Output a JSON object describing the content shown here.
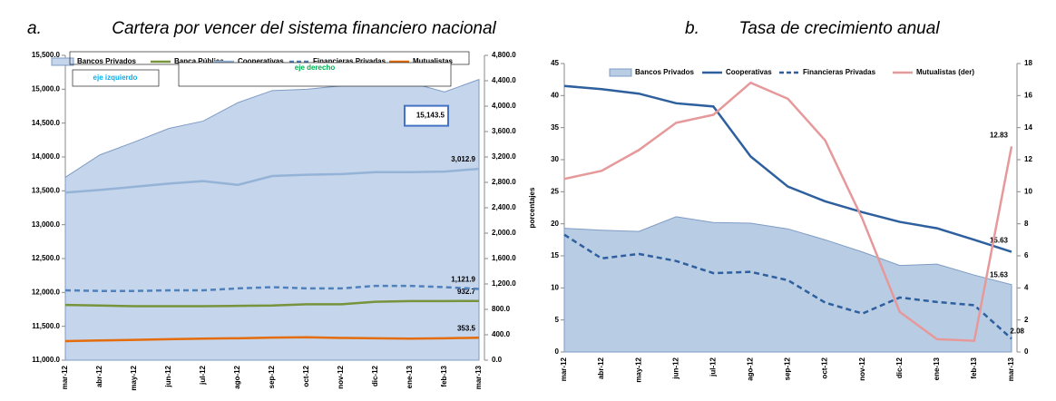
{
  "chart_data": [
    {
      "type": "line",
      "label": "a.",
      "title": "Cartera por vencer del sistema financiero nacional",
      "categories": [
        "mar-12",
        "abr-12",
        "may-12",
        "jun-12",
        "jul-12",
        "ago-12",
        "sep-12",
        "oct-12",
        "nov-12",
        "dic-12",
        "ene-13",
        "feb-13",
        "mar-13"
      ],
      "series": [
        {
          "name": "Bancos Privados",
          "color": "#c5d5ec",
          "style": "area",
          "values": [
            13700,
            14030,
            14220,
            14420,
            14530,
            14800,
            14980,
            15000,
            15050,
            15080,
            15100,
            14960,
            15143.5
          ],
          "value_labels": [
            null,
            null,
            null,
            null,
            null,
            null,
            null,
            null,
            null,
            null,
            null,
            null,
            "15,143.5"
          ]
        },
        {
          "name": "Banca Pública",
          "color": "#77933c",
          "axis": "y2",
          "values": [
            870,
            860,
            850,
            850,
            850,
            855,
            860,
            880,
            880,
            920,
            930,
            930,
            932.7
          ],
          "value_labels": [
            null,
            null,
            null,
            null,
            null,
            null,
            null,
            null,
            null,
            null,
            null,
            null,
            "932.7"
          ]
        },
        {
          "name": "Cooperativas",
          "color": "#95b3d7",
          "axis": "y2",
          "values": [
            2640,
            2680,
            2730,
            2780,
            2820,
            2760,
            2900,
            2920,
            2930,
            2960,
            2960,
            2970,
            3012.9
          ],
          "value_labels": [
            null,
            null,
            null,
            null,
            null,
            null,
            null,
            null,
            null,
            null,
            null,
            null,
            "3,012.9"
          ]
        },
        {
          "name": "Financieras Privadas",
          "color": "#4f81bd",
          "axis": "y2",
          "dash": true,
          "values": [
            1100,
            1090,
            1090,
            1100,
            1100,
            1130,
            1150,
            1130,
            1130,
            1170,
            1170,
            1150,
            1121.9
          ],
          "value_labels": [
            null,
            null,
            null,
            null,
            null,
            null,
            null,
            null,
            null,
            null,
            null,
            null,
            "1,121.9"
          ]
        },
        {
          "name": "Mutualistas",
          "color": "#e46c0a",
          "axis": "y2",
          "values": [
            300,
            310,
            320,
            330,
            340,
            345,
            355,
            360,
            350,
            345,
            340,
            345,
            353.5
          ],
          "value_labels": [
            null,
            null,
            null,
            null,
            null,
            null,
            null,
            null,
            null,
            null,
            null,
            null,
            "353.5"
          ]
        }
      ],
      "ylim": [
        11000,
        15500
      ],
      "yticks": [
        {
          "value": 11000,
          "label": "11,000.0"
        },
        {
          "value": 11500,
          "label": "11,500.0"
        },
        {
          "value": 12000,
          "label": "12,000.0"
        },
        {
          "value": 12500,
          "label": "12,500.0"
        },
        {
          "value": 13000,
          "label": "13,000.0"
        },
        {
          "value": 13500,
          "label": "13,500.0"
        },
        {
          "value": 14000,
          "label": "14,000.0"
        },
        {
          "value": 14500,
          "label": "14,500.0"
        },
        {
          "value": 15000,
          "label": "15,000.0"
        },
        {
          "value": 15500,
          "label": "15,500.0"
        }
      ],
      "y2lim": [
        0,
        4800
      ],
      "y2ticks": [
        {
          "value": 0,
          "label": "0.0"
        },
        {
          "value": 400,
          "label": "400.0"
        },
        {
          "value": 800,
          "label": "800.0"
        },
        {
          "value": 1200,
          "label": "1,200.0"
        },
        {
          "value": 1600,
          "label": "1,600.0"
        },
        {
          "value": 2000,
          "label": "2,000.0"
        },
        {
          "value": 2400,
          "label": "2,400.0"
        },
        {
          "value": 2800,
          "label": "2,800.0"
        },
        {
          "value": 3200,
          "label": "3,200.0"
        },
        {
          "value": 3600,
          "label": "3,600.0"
        },
        {
          "value": 4000,
          "label": "4,000.0"
        },
        {
          "value": 4400,
          "label": "4,400.0"
        },
        {
          "value": 4800,
          "label": "4,800.0"
        }
      ],
      "annotations": [
        "eje izquierdo",
        "eje derecho"
      ]
    },
    {
      "type": "line",
      "label": "b.",
      "title": "Tasa de crecimiento anual",
      "ylabel": "porcentajes",
      "categories": [
        "mar-12",
        "abr-12",
        "may-12",
        "jun-12",
        "jul-12",
        "ago-12",
        "sep-12",
        "oct-12",
        "nov-12",
        "dic-12",
        "ene-13",
        "feb-13",
        "mar-13"
      ],
      "series": [
        {
          "name": "Bancos Privados",
          "color": "#b8cce4",
          "style": "area",
          "values": [
            19.3,
            19.0,
            18.8,
            21.1,
            20.2,
            20.1,
            19.2,
            17.5,
            15.6,
            13.5,
            13.7,
            12.0,
            10.5
          ]
        },
        {
          "name": "Cooperativas",
          "color": "#2e5f9e",
          "values": [
            41.5,
            41.0,
            40.3,
            38.8,
            38.3,
            30.5,
            25.8,
            23.5,
            21.8,
            20.3,
            19.3,
            17.5,
            15.63
          ],
          "value_labels": [
            null,
            null,
            null,
            null,
            null,
            null,
            null,
            null,
            null,
            null,
            null,
            null,
            "15.63"
          ]
        },
        {
          "name": "Financieras Privadas",
          "color": "#2e5f9e",
          "dash": true,
          "values": [
            18.3,
            14.6,
            15.3,
            14.2,
            12.3,
            12.5,
            11.2,
            7.7,
            6.0,
            8.5,
            7.8,
            7.3,
            2.08
          ],
          "value_labels": [
            null,
            null,
            null,
            null,
            null,
            null,
            null,
            null,
            null,
            null,
            null,
            null,
            "2.08"
          ]
        },
        {
          "name": "Mutualistas (der)",
          "color": "#e6999a",
          "axis": "y2",
          "values": [
            10.8,
            11.3,
            12.6,
            14.3,
            14.8,
            16.8,
            15.8,
            13.2,
            8.3,
            2.5,
            0.8,
            0.7,
            12.83
          ],
          "value_labels": [
            null,
            null,
            null,
            null,
            null,
            null,
            null,
            null,
            null,
            null,
            null,
            null,
            "12.83"
          ]
        }
      ],
      "ylim": [
        0,
        45
      ],
      "yticks": [
        0,
        5,
        10,
        15,
        20,
        25,
        30,
        35,
        40,
        45
      ],
      "y2lim": [
        0,
        18
      ],
      "y2ticks": [
        0,
        2,
        4,
        6,
        8,
        10,
        12,
        14,
        16,
        18
      ],
      "annotations": [
        "15.63"
      ]
    }
  ]
}
